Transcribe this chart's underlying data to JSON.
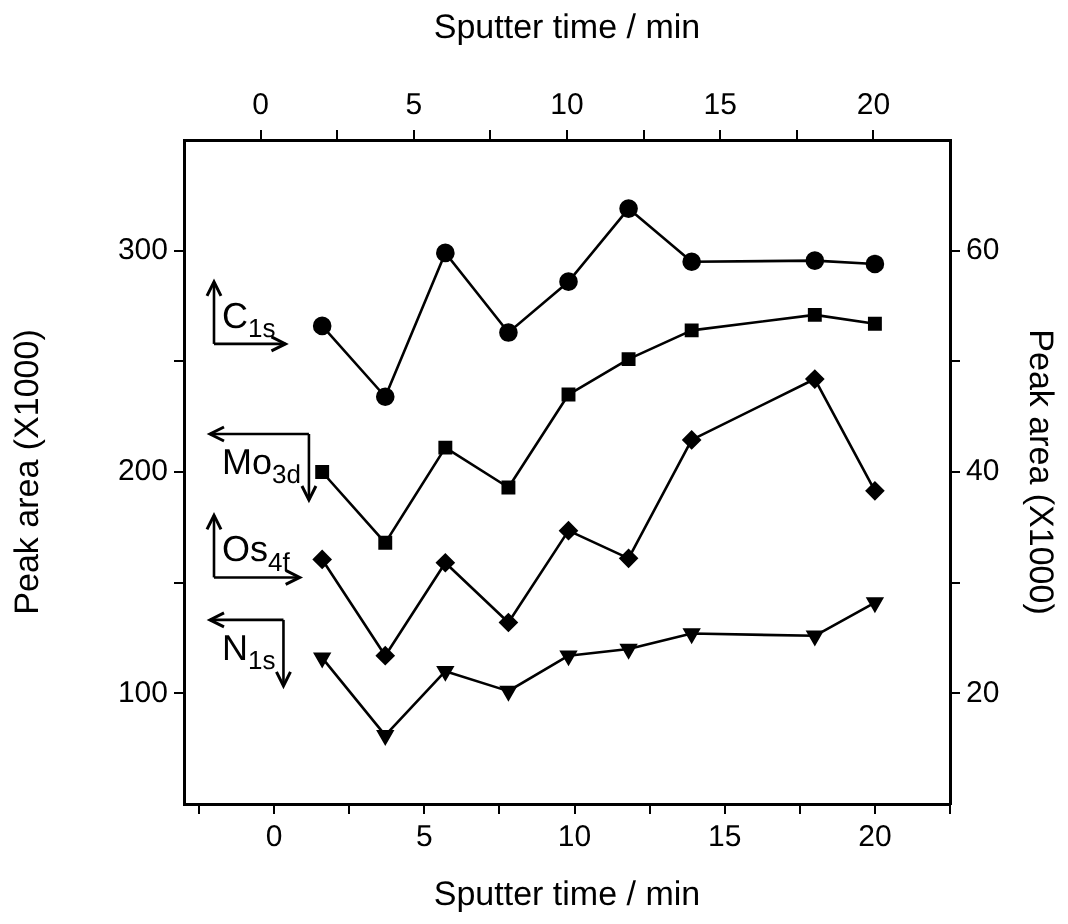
{
  "chart_data": {
    "type": "line",
    "xlabel": "Sputter time / min",
    "x2label": "Sputter time / min",
    "ylabel": "Peak area (X1000)",
    "y2label": "Peak area (X1000)",
    "x": [
      1.6,
      3.7,
      5.7,
      7.8,
      9.8,
      11.8,
      13.9,
      18,
      20
    ],
    "xlim": [
      -3,
      22.5
    ],
    "xticks": [
      {
        "value": -2.5,
        "label": null
      },
      0,
      {
        "value": 2.5,
        "label": null
      },
      5,
      {
        "value": 7.5,
        "label": null
      },
      10,
      {
        "value": 12.5,
        "label": null
      },
      15,
      {
        "value": 17.5,
        "label": null
      },
      20,
      {
        "value": 22.5,
        "label": null
      }
    ],
    "x2lim": [
      -2.5,
      22.5
    ],
    "x2ticks": [
      0,
      {
        "value": 2.5,
        "label": null
      },
      5,
      {
        "value": 7.5,
        "label": null
      },
      10,
      {
        "value": 12.5,
        "label": null
      },
      15,
      {
        "value": 17.5,
        "label": null
      },
      20
    ],
    "ylim": [
      50,
      350
    ],
    "yticks": [
      100,
      {
        "value": 150,
        "label": null
      },
      200,
      {
        "value": 250,
        "label": null
      },
      300
    ],
    "y2lim": [
      10,
      70
    ],
    "y2ticks": [
      20,
      {
        "value": 30,
        "label": null
      },
      40,
      {
        "value": 50,
        "label": null
      },
      60
    ],
    "grid": false,
    "legend": "left",
    "series": [
      {
        "name": "C$_{1s}$",
        "color": "#000000",
        "axis": "y2",
        "marker": "circle",
        "values": [
          53.2,
          46.8,
          59.8,
          52.6,
          57.2,
          63.8,
          59.0,
          59.1,
          58.8
        ]
      },
      {
        "name": "Mo$_{3d}$",
        "color": "#000000",
        "axis": "y",
        "marker": "square",
        "values": [
          200,
          168,
          211,
          193,
          235,
          251,
          264,
          271,
          267
        ]
      },
      {
        "name": "Os$_{4f}$",
        "color": "#000000",
        "axis": "y2",
        "marker": "diamond",
        "values": [
          32.1,
          23.4,
          31.8,
          26.4,
          34.7,
          32.2,
          42.9,
          48.4,
          38.3
        ]
      },
      {
        "name": "N$_{1s}$",
        "color": "#000000",
        "axis": "y",
        "marker": "triangle",
        "values": [
          116,
          81,
          110,
          101,
          117,
          120,
          127,
          126,
          141
        ]
      }
    ]
  }
}
